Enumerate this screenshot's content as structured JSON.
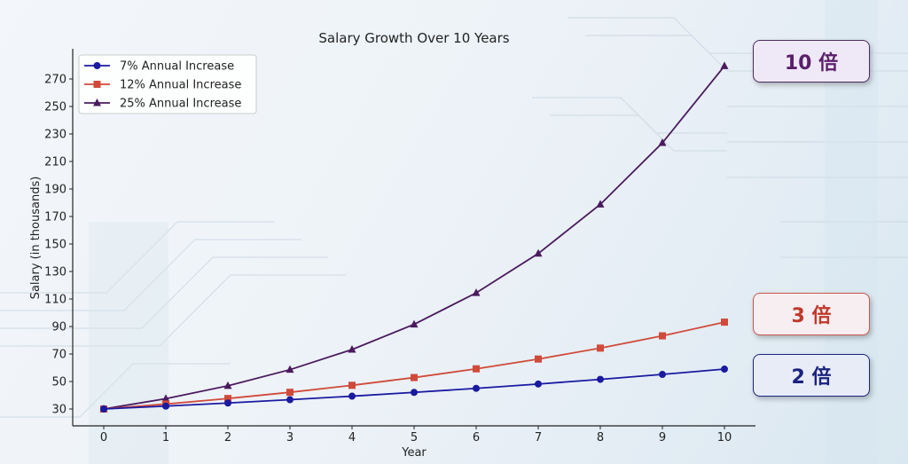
{
  "chart_data": {
    "type": "line",
    "title": "Salary Growth Over 10 Years",
    "xlabel": "Year",
    "ylabel": "Salary (in thousands)",
    "x": [
      0,
      1,
      2,
      3,
      4,
      5,
      6,
      7,
      8,
      9,
      10
    ],
    "yticks": [
      30,
      50,
      70,
      90,
      110,
      130,
      150,
      170,
      190,
      210,
      230,
      250,
      270
    ],
    "ylim": [
      22,
      283
    ],
    "xlim": [
      -0.5,
      10.5
    ],
    "grid": false,
    "legend_position": "upper left",
    "series": [
      {
        "name": "7% Annual Increase",
        "color": "#1a1aa0",
        "marker": "circle",
        "values": [
          30,
          32.1,
          34.35,
          36.75,
          39.32,
          42.08,
          45.02,
          48.17,
          51.55,
          55.15,
          59.01
        ]
      },
      {
        "name": "12% Annual Increase",
        "color": "#d04a3a",
        "marker": "square",
        "values": [
          30,
          33.6,
          37.63,
          42.15,
          47.21,
          52.87,
          59.21,
          66.32,
          74.28,
          83.19,
          93.17
        ]
      },
      {
        "name": "25% Annual Increase",
        "color": "#4a1a5e",
        "marker": "triangle",
        "values": [
          30,
          37.5,
          46.88,
          58.59,
          73.24,
          91.55,
          114.44,
          143.05,
          178.81,
          223.52,
          279.4
        ]
      }
    ]
  },
  "badges": {
    "ten_x": "10 倍",
    "three_x": "3 倍",
    "two_x": "2 倍"
  }
}
